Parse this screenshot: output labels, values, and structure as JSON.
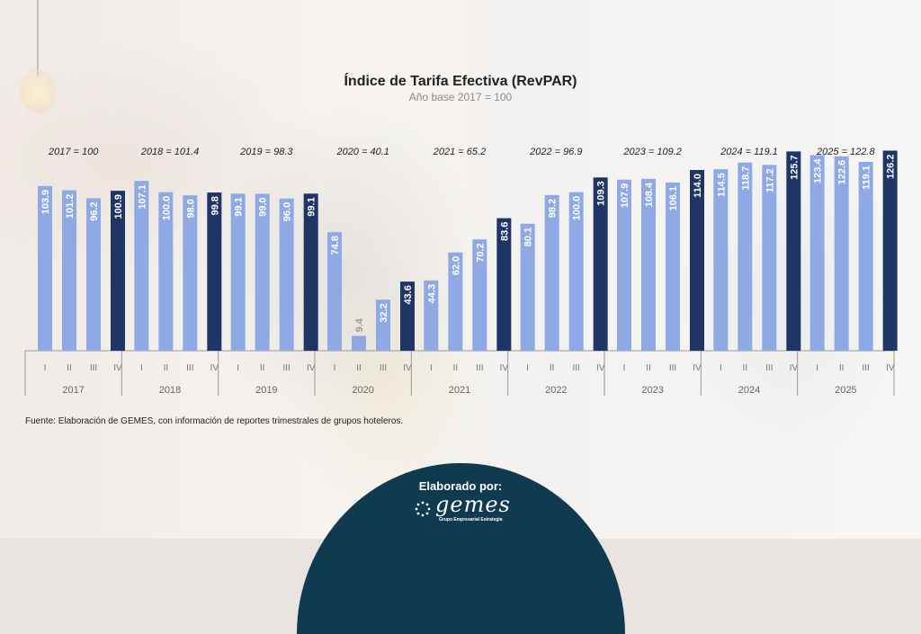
{
  "chart_data": {
    "type": "bar",
    "title": "Índice de Tarifa Efectiva (RevPAR)",
    "subtitle": "Año base 2017 = 100",
    "ylim": [
      0,
      135
    ],
    "grid": false,
    "quarter_labels": [
      "I",
      "II",
      "III",
      "IV"
    ],
    "years": [
      {
        "year": "2017",
        "annotation": "2017 = 100",
        "values": [
          103.9,
          101.2,
          96.2,
          100.9
        ]
      },
      {
        "year": "2018",
        "annotation": "2018 = 101.4",
        "values": [
          107.1,
          100.0,
          98.0,
          99.8
        ]
      },
      {
        "year": "2019",
        "annotation": "2019 = 98.3",
        "values": [
          99.1,
          99.0,
          96.0,
          99.1
        ]
      },
      {
        "year": "2020",
        "annotation": "2020 = 40.1",
        "values": [
          74.8,
          9.4,
          32.2,
          43.6
        ]
      },
      {
        "year": "2021",
        "annotation": "2021 = 65.2",
        "values": [
          44.3,
          62.0,
          70.2,
          83.6
        ]
      },
      {
        "year": "2022",
        "annotation": "2022 = 96.9",
        "values": [
          80.1,
          98.2,
          100.0,
          109.3
        ]
      },
      {
        "year": "2023",
        "annotation": "2023 = 109.2",
        "values": [
          107.9,
          108.4,
          106.1,
          114.0
        ]
      },
      {
        "year": "2024",
        "annotation": "2024 = 119.1",
        "values": [
          114.5,
          118.7,
          117.2,
          125.7
        ]
      },
      {
        "year": "2025",
        "annotation": "2025 = 122.8",
        "values": [
          123.4,
          122.6,
          119.1,
          126.2
        ]
      }
    ],
    "colors": {
      "light_bar": "#8fa9e4",
      "dark_bar": "#1f3566",
      "label_light": "#ffffff",
      "label_low": "#9a9a9a",
      "axis": "#9a9a9a",
      "title": "#222222",
      "subtitle": "#8a8a8a"
    },
    "source": "Fuente: Elaboración de GEMES, con información de reportes trimestrales de grupos hoteleros."
  },
  "footer": {
    "label": "Elaborado por:",
    "logo_text": "gemes",
    "logo_sub": "Grupo Empresarial Estrategia"
  }
}
